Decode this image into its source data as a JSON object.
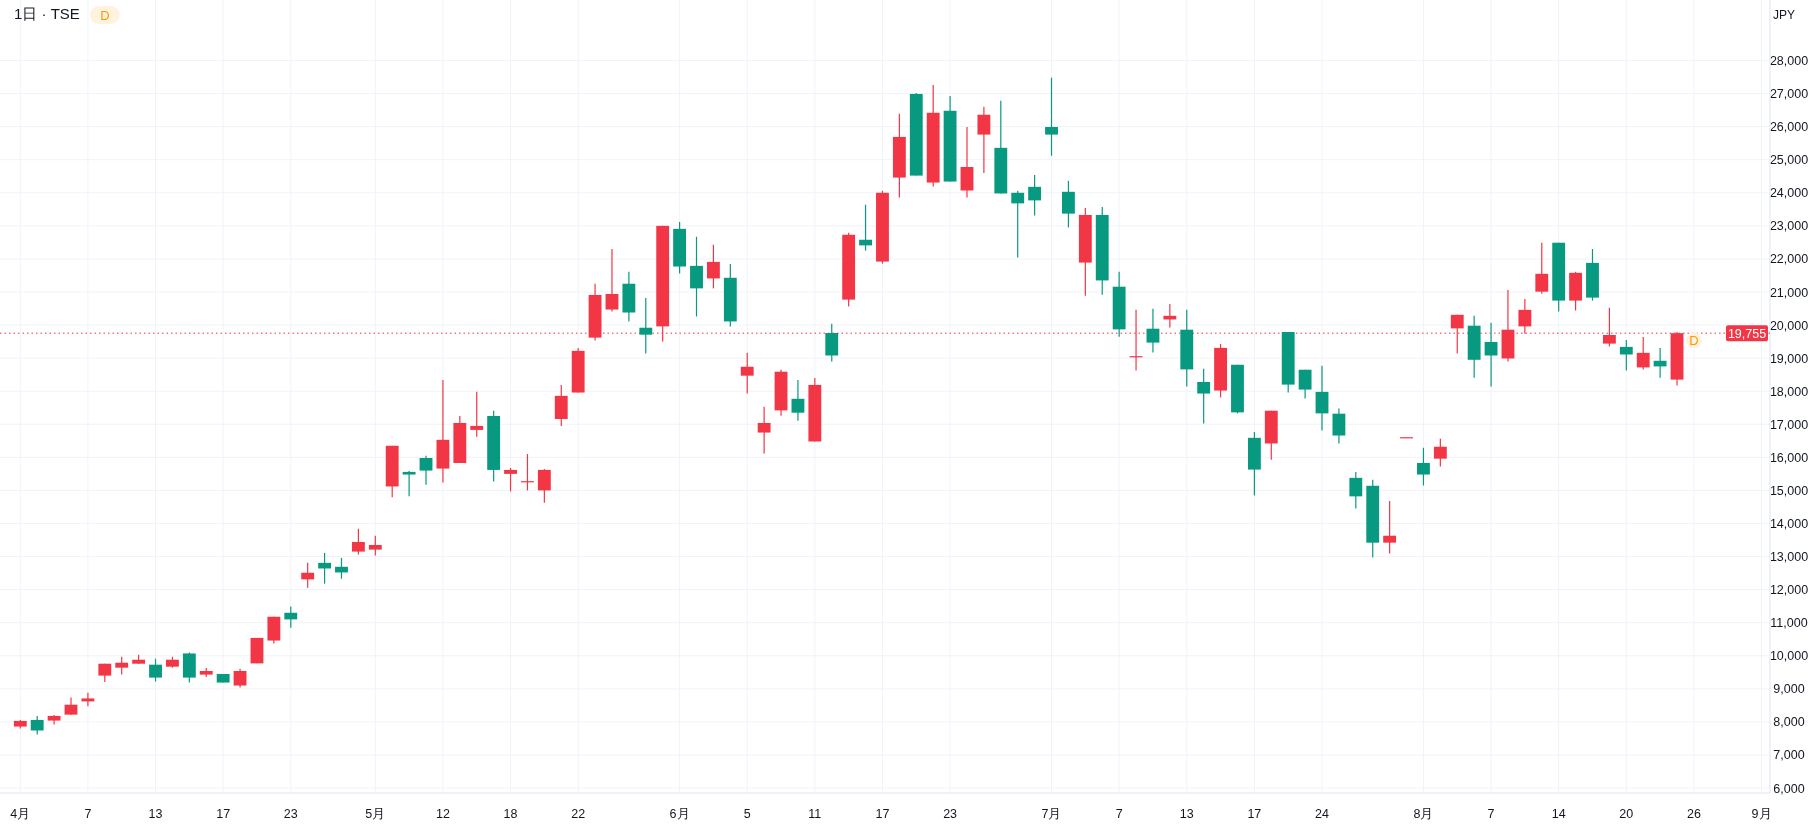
{
  "chart_data": {
    "type": "candlestick",
    "title": "1日 · TSE",
    "categories": [
      "4月",
      null,
      null,
      null,
      "7",
      null,
      null,
      null,
      "13",
      null,
      null,
      null,
      "17",
      null,
      null,
      null,
      "23",
      null,
      null,
      null,
      null,
      "5月",
      null,
      null,
      null,
      "12",
      null,
      null,
      null,
      "18",
      null,
      null,
      null,
      "22",
      null,
      null,
      null,
      null,
      null,
      "6月",
      null,
      null,
      null,
      "5",
      null,
      null,
      null,
      "11",
      null,
      null,
      null,
      "17",
      null,
      null,
      null,
      "23",
      null,
      null,
      null,
      null,
      null,
      "7月",
      null,
      null,
      null,
      "7",
      null,
      null,
      null,
      "13",
      null,
      null,
      null,
      "17",
      null,
      null,
      null,
      "24",
      null,
      null,
      null,
      null,
      null,
      "8月",
      null,
      null,
      null,
      "7",
      null,
      null,
      null,
      "14",
      null,
      null,
      null,
      "20",
      null,
      null,
      null,
      "26",
      null,
      null,
      null,
      "9月"
    ],
    "ohlc": [
      [
        7860,
        8060,
        7800,
        8030
      ],
      [
        8060,
        8180,
        7620,
        7740
      ],
      [
        8040,
        8210,
        7920,
        8180
      ],
      [
        8220,
        8740,
        8220,
        8520
      ],
      [
        8620,
        8880,
        8470,
        8710
      ],
      [
        9400,
        9760,
        9210,
        9760
      ],
      [
        9640,
        9970,
        9430,
        9790
      ],
      [
        9760,
        10030,
        9760,
        9880
      ],
      [
        9730,
        9910,
        9220,
        9340
      ],
      [
        9670,
        9970,
        9640,
        9880
      ],
      [
        10070,
        10100,
        9190,
        9340
      ],
      [
        9430,
        9630,
        9360,
        9540
      ],
      [
        9450,
        9450,
        9190,
        9190
      ],
      [
        9100,
        9610,
        9040,
        9540
      ],
      [
        9770,
        10540,
        9770,
        10540
      ],
      [
        10460,
        11180,
        10370,
        11180
      ],
      [
        11300,
        11490,
        10850,
        11100
      ],
      [
        12310,
        12810,
        12060,
        12510
      ],
      [
        12810,
        13110,
        12180,
        12640
      ],
      [
        12690,
        12960,
        12330,
        12520
      ],
      [
        13150,
        13840,
        13060,
        13440
      ],
      [
        13210,
        13630,
        13030,
        13350
      ],
      [
        15120,
        16350,
        14790,
        16350
      ],
      [
        15560,
        15590,
        14820,
        15480
      ],
      [
        15980,
        16050,
        15170,
        15600
      ],
      [
        15660,
        18340,
        15240,
        16530
      ],
      [
        15830,
        17250,
        15830,
        17040
      ],
      [
        16830,
        17980,
        16620,
        16950
      ],
      [
        17250,
        17410,
        15270,
        15620
      ],
      [
        15500,
        15680,
        14970,
        15620
      ],
      [
        15270,
        16100,
        15000,
        15280
      ],
      [
        15000,
        15650,
        14630,
        15620
      ],
      [
        17160,
        18190,
        16950,
        17860
      ],
      [
        17960,
        19310,
        17960,
        19220
      ],
      [
        19620,
        21250,
        19530,
        20910
      ],
      [
        20470,
        22300,
        20410,
        20940
      ],
      [
        21250,
        21610,
        20110,
        20380
      ],
      [
        19920,
        20820,
        19140,
        19710
      ],
      [
        19960,
        23000,
        19500,
        23000
      ],
      [
        22910,
        23120,
        21560,
        21770
      ],
      [
        21790,
        22670,
        20260,
        21110
      ],
      [
        21410,
        22430,
        21110,
        21910
      ],
      [
        21430,
        21850,
        19960,
        20110
      ],
      [
        18470,
        19160,
        17930,
        18740
      ],
      [
        16750,
        17530,
        16120,
        17040
      ],
      [
        17420,
        18650,
        17260,
        18590
      ],
      [
        17770,
        18340,
        17110,
        17350
      ],
      [
        16480,
        18400,
        16480,
        18190
      ],
      [
        19760,
        20040,
        18900,
        19080
      ],
      [
        20770,
        22790,
        20560,
        22730
      ],
      [
        22580,
        23640,
        22250,
        22410
      ],
      [
        21920,
        24060,
        21860,
        24000
      ],
      [
        24460,
        26390,
        23860,
        25690
      ],
      [
        26990,
        27020,
        24520,
        24520
      ],
      [
        24310,
        27260,
        24190,
        26420
      ],
      [
        26480,
        26930,
        24340,
        24340
      ],
      [
        24070,
        25990,
        23860,
        24780
      ],
      [
        25760,
        26600,
        24600,
        26360
      ],
      [
        25360,
        26780,
        23980,
        23980
      ],
      [
        24000,
        24060,
        22040,
        23680
      ],
      [
        24180,
        24540,
        23310,
        23770
      ],
      [
        25990,
        27480,
        25120,
        25760
      ],
      [
        24030,
        24360,
        22950,
        23370
      ],
      [
        21890,
        23540,
        20890,
        23330
      ],
      [
        23330,
        23570,
        20920,
        21350
      ],
      [
        21160,
        21610,
        19650,
        19870
      ],
      [
        19050,
        20460,
        18630,
        19060
      ],
      [
        19890,
        20490,
        19170,
        19470
      ],
      [
        20170,
        20640,
        19930,
        20280
      ],
      [
        19860,
        20460,
        18140,
        18660
      ],
      [
        18280,
        18680,
        17020,
        17930
      ],
      [
        18020,
        19430,
        17810,
        19310
      ],
      [
        18800,
        18800,
        17330,
        17360
      ],
      [
        16590,
        16770,
        14850,
        15630
      ],
      [
        16420,
        17410,
        15930,
        17410
      ],
      [
        19790,
        19790,
        17960,
        18200
      ],
      [
        18650,
        18650,
        17780,
        18050
      ],
      [
        17980,
        18770,
        16810,
        17330
      ],
      [
        17320,
        17480,
        16420,
        16660
      ],
      [
        15380,
        15560,
        14450,
        14820
      ],
      [
        15140,
        15320,
        12970,
        13420
      ],
      [
        13420,
        14680,
        13090,
        13630
      ],
      [
        16610,
        16610,
        16610,
        16610
      ],
      [
        15830,
        16290,
        15150,
        15480
      ],
      [
        15960,
        16560,
        15720,
        16320
      ],
      [
        19900,
        20310,
        19140,
        20310
      ],
      [
        19980,
        20280,
        18410,
        18950
      ],
      [
        19490,
        20070,
        18140,
        19080
      ],
      [
        18990,
        21060,
        18900,
        19860
      ],
      [
        19960,
        20790,
        19740,
        20460
      ],
      [
        21010,
        22490,
        20950,
        21550
      ],
      [
        22490,
        22490,
        20410,
        20740
      ],
      [
        20740,
        21610,
        20440,
        21580
      ],
      [
        21880,
        22300,
        20740,
        20830
      ],
      [
        19440,
        20520,
        19350,
        19700
      ],
      [
        19340,
        19550,
        18630,
        19110
      ],
      [
        18720,
        19640,
        18660,
        19160
      ],
      [
        18920,
        19310,
        18410,
        18750
      ],
      [
        18350,
        19790,
        18170,
        19755
      ],
      null,
      null,
      null,
      null,
      null
    ],
    "colors": [
      "#f23645",
      "#089981",
      "#f23645",
      "#f23645",
      "#f23645",
      "#f23645",
      "#f23645",
      "#f23645",
      "#089981",
      "#f23645",
      "#089981",
      "#f23645",
      "#089981",
      "#f23645",
      "#f23645",
      "#f23645",
      "#089981",
      "#f23645",
      "#089981",
      "#089981",
      "#f23645",
      "#f23645",
      "#f23645",
      "#089981",
      "#089981",
      "#f23645",
      "#f23645",
      "#f23645",
      "#089981",
      "#f23645",
      "#f23645",
      "#f23645",
      "#f23645",
      "#f23645",
      "#f23645",
      "#f23645",
      "#089981",
      "#089981",
      "#f23645",
      "#089981",
      "#089981",
      "#f23645",
      "#089981",
      "#f23645",
      "#f23645",
      "#f23645",
      "#089981",
      "#f23645",
      "#089981",
      "#f23645",
      "#089981",
      "#f23645",
      "#f23645",
      "#089981",
      "#f23645",
      "#089981",
      "#f23645",
      "#f23645",
      "#089981",
      "#089981",
      "#089981",
      "#089981",
      "#089981",
      "#f23645",
      "#089981",
      "#089981",
      "#f23645",
      "#089981",
      "#f23645",
      "#089981",
      "#089981",
      "#f23645",
      "#089981",
      "#089981",
      "#f23645",
      "#089981",
      "#089981",
      "#089981",
      "#089981",
      "#089981",
      "#089981",
      "#f23645",
      "#f23645",
      "#089981",
      "#f23645",
      "#f23645",
      "#089981",
      "#089981",
      "#f23645",
      "#f23645",
      "#f23645",
      "#089981",
      "#f23645",
      "#089981",
      "#f23645",
      "#089981",
      "#f23645",
      "#089981",
      "#f23645",
      null,
      null,
      null,
      null,
      null
    ],
    "ylim": [
      5850,
      29830
    ],
    "yticks": [
      {
        "value": 6000,
        "label": "6,000"
      },
      {
        "value": 7000,
        "label": "7,000"
      },
      {
        "value": 8000,
        "label": "8,000"
      },
      {
        "value": 9000,
        "label": "9,000"
      },
      {
        "value": 10000,
        "label": "10,000"
      },
      {
        "value": 11000,
        "label": "11,000"
      },
      {
        "value": 12000,
        "label": "12,000"
      },
      {
        "value": 13000,
        "label": "13,000"
      },
      {
        "value": 14000,
        "label": "14,000"
      },
      {
        "value": 15000,
        "label": "15,000"
      },
      {
        "value": 16000,
        "label": "16,000"
      },
      {
        "value": 17000,
        "label": "17,000"
      },
      {
        "value": 18000,
        "label": "18,000"
      },
      {
        "value": 19000,
        "label": "19,000"
      },
      {
        "value": 20000,
        "label": "20,000"
      },
      {
        "value": 21000,
        "label": "21,000"
      },
      {
        "value": 22000,
        "label": "22,000"
      },
      {
        "value": 23000,
        "label": "23,000"
      },
      {
        "value": 24000,
        "label": "24,000"
      },
      {
        "value": 25000,
        "label": "25,000"
      },
      {
        "value": 26000,
        "label": "26,000"
      },
      {
        "value": 27000,
        "label": "27,000"
      },
      {
        "value": 28000,
        "label": "28,000"
      }
    ],
    "ref_lines": [
      {
        "axis": "y",
        "value": 19755,
        "label": "19,755",
        "color": "#f23645",
        "line_style": "dotted"
      }
    ],
    "grid": true,
    "annotations": [
      "D",
      "JPY",
      {
        "text": "D",
        "y": 19540
      }
    ]
  }
}
